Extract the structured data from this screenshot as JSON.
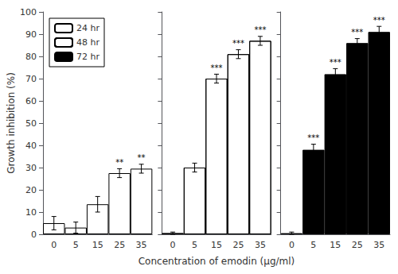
{
  "chart_data": {
    "type": "bar",
    "xlabel": "Concentration of emodin (µg/ml)",
    "ylabel": "Growth inhibition (%)",
    "categories": [
      "0",
      "5",
      "15",
      "25",
      "35"
    ],
    "series": [
      {
        "name": "24 hr",
        "color": "white",
        "values": [
          5.0,
          3.0,
          13.5,
          27.5,
          29.5
        ],
        "errors": [
          3.0,
          2.5,
          3.5,
          2.0,
          2.0
        ],
        "significance": [
          null,
          null,
          null,
          "**",
          "**"
        ]
      },
      {
        "name": "48 hr",
        "color": "white",
        "values": [
          0.5,
          30.0,
          70.0,
          81.0,
          87.0
        ],
        "errors": [
          0.5,
          2.0,
          2.0,
          2.0,
          2.0
        ],
        "significance": [
          null,
          null,
          "***",
          "***",
          "***"
        ]
      },
      {
        "name": "72 hr",
        "color": "black",
        "values": [
          0.5,
          38.0,
          72.0,
          86.0,
          91.0
        ],
        "errors": [
          0.5,
          2.5,
          2.5,
          2.0,
          2.5
        ],
        "significance": [
          null,
          "***",
          "***",
          "***",
          "***"
        ]
      }
    ],
    "ylim": [
      0,
      100
    ],
    "yticks": [
      0,
      10,
      20,
      30,
      40,
      50,
      60,
      70,
      80,
      90,
      100
    ],
    "grid": false,
    "legend": "upper left"
  }
}
